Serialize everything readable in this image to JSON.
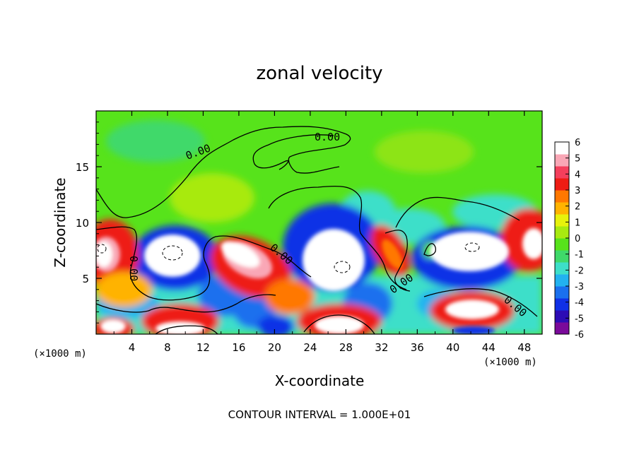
{
  "chart_data": {
    "type": "heatmap",
    "title": "zonal velocity",
    "xlabel": "X-coordinate",
    "ylabel": "Z-coordinate",
    "x_unit": "(×1000 m)",
    "x_unit_left": "(×1000 m)",
    "x_ticks": [
      4,
      8,
      12,
      16,
      20,
      24,
      28,
      32,
      36,
      40,
      44,
      48
    ],
    "y_ticks": [
      5,
      10,
      15
    ],
    "xlim": [
      0,
      50
    ],
    "ylim": [
      0,
      20
    ],
    "colorbar": {
      "ticks": [
        6,
        5,
        4,
        3,
        2,
        1,
        0,
        -1,
        -2,
        -3,
        -4,
        -5,
        -6
      ],
      "range": [
        -6,
        6
      ],
      "colors": [
        "#7a0a9a",
        "#2c0cb5",
        "#1030e6",
        "#1a70ee",
        "#22b2f0",
        "#3ddfc9",
        "#3fd96a",
        "#57e31b",
        "#a8ea10",
        "#e7f20c",
        "#ffb300",
        "#ff7800",
        "#ee1c14",
        "#f43f5c",
        "#f9a7b6",
        "#ffffff"
      ]
    },
    "contour_label": "0.00",
    "contour_interval": "CONTOUR INTERVAL = 1.000E+01",
    "regions": [
      {
        "kind": "positive-core",
        "x": 2,
        "z": 7.5
      },
      {
        "kind": "negative-core",
        "x": 10,
        "z": 7
      },
      {
        "kind": "positive-core",
        "x": 17,
        "z": 6.5
      },
      {
        "kind": "negative-core",
        "x": 27,
        "z": 6
      },
      {
        "kind": "positive-core",
        "x": 33,
        "z": 7
      },
      {
        "kind": "negative-core",
        "x": 42,
        "z": 7.5
      },
      {
        "kind": "positive-core",
        "x": 42,
        "z": 2
      },
      {
        "kind": "positive-core",
        "x": 48,
        "z": 8.5
      }
    ]
  }
}
